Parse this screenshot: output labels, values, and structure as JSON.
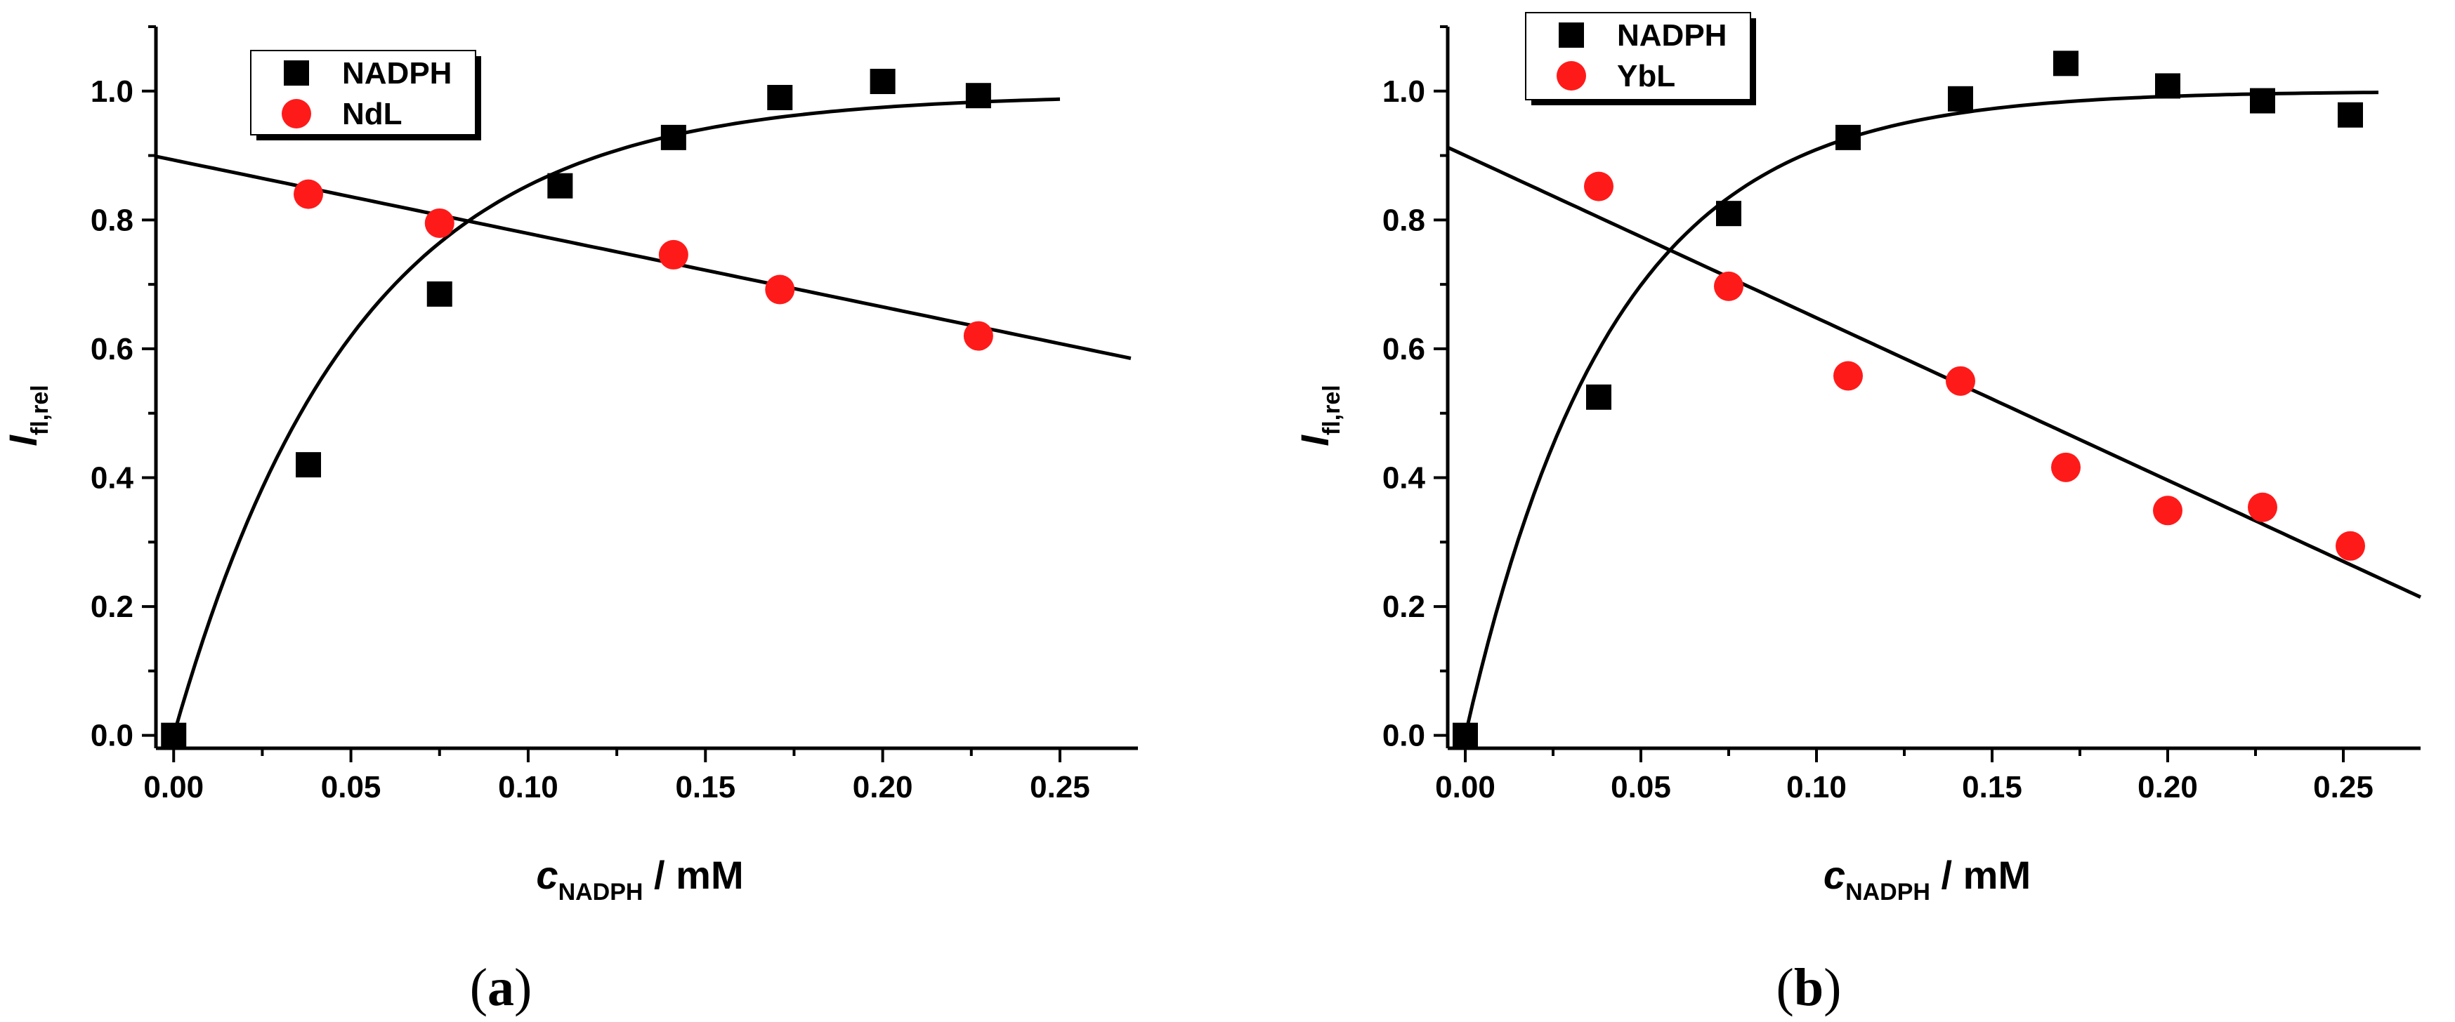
{
  "chart_data": [
    {
      "type": "scatter",
      "panel_label": "(a)",
      "xlabel": {
        "main": "c",
        "sub": "NADPH",
        "suffix": " / mM"
      },
      "ylabel": {
        "main": "I",
        "sub": "fl,rel"
      },
      "xlim": [
        -0.005,
        0.272
      ],
      "ylim": [
        -0.02,
        1.1
      ],
      "xticks": [
        "0.00",
        "0.05",
        "0.10",
        "0.15",
        "0.20",
        "0.25"
      ],
      "yticks": [
        "0.0",
        "0.2",
        "0.4",
        "0.6",
        "0.8",
        "1.0"
      ],
      "legend_position": "top-left",
      "series": [
        {
          "name": "NADPH",
          "marker": "square",
          "color": "#000000",
          "x": [
            0.0,
            0.038,
            0.075,
            0.109,
            0.141,
            0.171,
            0.2,
            0.227
          ],
          "y": [
            0.0,
            0.42,
            0.685,
            0.853,
            0.928,
            0.99,
            1.015,
            0.993
          ],
          "fit": {
            "type": "exponential-saturation",
            "a": 0.995,
            "k": 19.5,
            "x_range": [
              0.0,
              0.25
            ]
          }
        },
        {
          "name": "NdL",
          "marker": "circle",
          "color": "#ff1a1a",
          "x": [
            0.038,
            0.075,
            0.141,
            0.171,
            0.227
          ],
          "y": [
            0.84,
            0.795,
            0.746,
            0.692,
            0.62
          ],
          "fit": {
            "type": "linear",
            "intercept": 0.893,
            "slope": -1.14,
            "x_range": [
              -0.005,
              0.27
            ]
          }
        }
      ]
    },
    {
      "type": "scatter",
      "panel_label": "(b)",
      "xlabel": {
        "main": "c",
        "sub": "NADPH",
        "suffix": " / mM"
      },
      "ylabel": {
        "main": "I",
        "sub": "fl,rel"
      },
      "xlim": [
        -0.005,
        0.272
      ],
      "ylim": [
        -0.02,
        1.1
      ],
      "xticks": [
        "0.00",
        "0.05",
        "0.10",
        "0.15",
        "0.20",
        "0.25"
      ],
      "yticks": [
        "0.0",
        "0.2",
        "0.4",
        "0.6",
        "0.8",
        "1.0"
      ],
      "legend_position": "top-left",
      "series": [
        {
          "name": "NADPH",
          "marker": "square",
          "color": "#000000",
          "x": [
            0.0,
            0.038,
            0.075,
            0.109,
            0.141,
            0.171,
            0.2,
            0.227,
            0.252
          ],
          "y": [
            0.0,
            0.525,
            0.81,
            0.928,
            0.988,
            1.043,
            1.008,
            0.985,
            0.963
          ],
          "fit": {
            "type": "exponential-saturation",
            "a": 1.0,
            "k": 24.0,
            "x_range": [
              0.0,
              0.26
            ]
          }
        },
        {
          "name": "YbL",
          "marker": "circle",
          "color": "#ff1a1a",
          "x": [
            0.038,
            0.075,
            0.109,
            0.141,
            0.171,
            0.2,
            0.227,
            0.252
          ],
          "y": [
            0.852,
            0.697,
            0.558,
            0.55,
            0.416,
            0.349,
            0.354,
            0.294
          ],
          "fit": {
            "type": "linear",
            "intercept": 0.9,
            "slope": -2.52,
            "x_range": [
              -0.005,
              0.272
            ]
          }
        }
      ]
    }
  ]
}
